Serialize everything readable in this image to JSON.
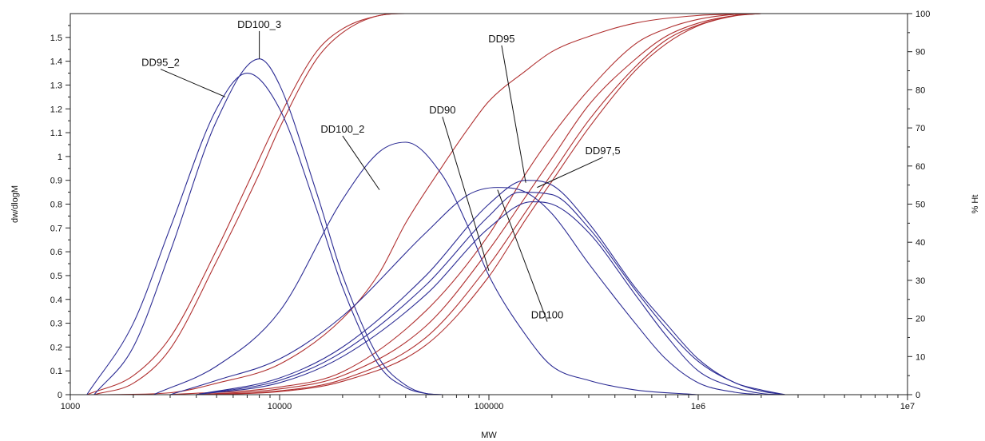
{
  "chart_data": {
    "type": "line",
    "title": "",
    "xlabel": "MW",
    "ylabel": "dw/dlogM",
    "y2label": "% Ht",
    "xscale": "log",
    "xlim": [
      1000,
      10000000
    ],
    "ylim": [
      0,
      1.6
    ],
    "y2lim": [
      0,
      100
    ],
    "grid": false,
    "x_ticks": [
      "1000",
      "10000",
      "100000",
      "1e6",
      "1e7"
    ],
    "y_ticks": [
      "0",
      "0.1",
      "0.2",
      "0.3",
      "0.4",
      "0.5",
      "0.6",
      "0.7",
      "0.8",
      "0.9",
      "1",
      "1.1",
      "1.2",
      "1.3",
      "1.4",
      "1.5"
    ],
    "y2_ticks": [
      "0",
      "10",
      "20",
      "30",
      "40",
      "50",
      "60",
      "70",
      "80",
      "90",
      "100"
    ],
    "colors": {
      "distribution": "#2c2c94",
      "cumulative": "#b03030",
      "axis": "#222222"
    },
    "distribution_series": [
      {
        "name": "DD95_2",
        "x": [
          1200,
          2000,
          3000,
          5000,
          7000,
          10000,
          15000,
          20000,
          30000,
          40000,
          50000,
          60000
        ],
        "y": [
          0.0,
          0.3,
          0.7,
          1.2,
          1.35,
          1.2,
          0.78,
          0.45,
          0.12,
          0.03,
          0.005,
          0.0
        ]
      },
      {
        "name": "DD100_3",
        "x": [
          1300,
          2000,
          3000,
          5000,
          8000,
          10000,
          15000,
          20000,
          30000,
          40000,
          50000,
          60000
        ],
        "y": [
          0.0,
          0.2,
          0.6,
          1.15,
          1.41,
          1.3,
          0.85,
          0.5,
          0.15,
          0.04,
          0.005,
          0.0
        ]
      },
      {
        "name": "DD100_2",
        "x": [
          2500,
          5000,
          10000,
          20000,
          30000,
          40000,
          60000,
          80000,
          100000,
          150000,
          200000,
          300000,
          500000,
          1000000
        ],
        "y": [
          0.0,
          0.12,
          0.35,
          0.82,
          1.02,
          1.06,
          0.92,
          0.7,
          0.5,
          0.25,
          0.12,
          0.06,
          0.02,
          0.0
        ]
      },
      {
        "name": "DD90",
        "x": [
          3000,
          5000,
          10000,
          20000,
          50000,
          80000,
          110000,
          150000,
          200000,
          300000,
          500000,
          700000,
          1000000,
          1500000,
          2000000
        ],
        "y": [
          0.0,
          0.06,
          0.15,
          0.33,
          0.68,
          0.84,
          0.87,
          0.85,
          0.76,
          0.55,
          0.3,
          0.15,
          0.05,
          0.01,
          0.0
        ]
      },
      {
        "name": "DD95",
        "x": [
          4000,
          10000,
          20000,
          50000,
          100000,
          150000,
          200000,
          300000,
          500000,
          700000,
          1000000,
          1500000,
          2000000,
          2600000
        ],
        "y": [
          0.0,
          0.07,
          0.2,
          0.5,
          0.8,
          0.9,
          0.88,
          0.72,
          0.45,
          0.3,
          0.15,
          0.05,
          0.02,
          0.0
        ]
      },
      {
        "name": "DD97,5",
        "x": [
          4000,
          10000,
          20000,
          50000,
          100000,
          140000,
          200000,
          300000,
          500000,
          700000,
          1000000,
          1500000,
          2000000,
          2600000
        ],
        "y": [
          0.0,
          0.06,
          0.18,
          0.46,
          0.75,
          0.85,
          0.84,
          0.7,
          0.44,
          0.28,
          0.14,
          0.05,
          0.015,
          0.0
        ]
      },
      {
        "name": "DD100",
        "x": [
          4000,
          10000,
          20000,
          50000,
          100000,
          160000,
          200000,
          300000,
          500000,
          700000,
          1000000,
          1500000,
          2000000,
          2600000
        ],
        "y": [
          0.0,
          0.05,
          0.16,
          0.42,
          0.7,
          0.81,
          0.8,
          0.68,
          0.42,
          0.25,
          0.1,
          0.03,
          0.005,
          0.0
        ]
      }
    ],
    "cumulative_series": [
      {
        "x": [
          1200,
          2000,
          3000,
          5000,
          7000,
          10000,
          15000,
          20000,
          30000,
          40000,
          50000
        ],
        "y": [
          0,
          5,
          15,
          38,
          55,
          73,
          90,
          96,
          99.5,
          100,
          100
        ]
      },
      {
        "x": [
          1300,
          2000,
          3000,
          5000,
          8000,
          10000,
          15000,
          20000,
          30000,
          40000,
          50000
        ],
        "y": [
          0,
          3,
          12,
          35,
          58,
          70,
          88,
          95,
          99.5,
          100,
          100
        ]
      },
      {
        "x": [
          1500,
          3000,
          5000,
          10000,
          20000,
          30000,
          40000,
          60000,
          80000,
          100000,
          150000,
          200000,
          300000,
          500000,
          1000000,
          2000000
        ],
        "y": [
          0,
          0.5,
          3,
          8,
          20,
          32,
          45,
          60,
          70,
          77,
          85,
          90,
          94,
          97.5,
          99.5,
          100
        ]
      },
      {
        "x": [
          3000,
          10000,
          20000,
          50000,
          100000,
          150000,
          200000,
          300000,
          500000,
          700000,
          1000000,
          1500000,
          2000000
        ],
        "y": [
          0,
          2,
          6,
          22,
          42,
          58,
          68,
          80,
          92,
          96,
          98.5,
          99.8,
          100
        ]
      },
      {
        "x": [
          4000,
          10000,
          20000,
          50000,
          100000,
          150000,
          200000,
          300000,
          500000,
          700000,
          1000000,
          1500000,
          2000000
        ],
        "y": [
          0,
          1.5,
          5,
          18,
          38,
          52,
          62,
          76,
          88,
          94,
          97.5,
          99.5,
          100
        ]
      },
      {
        "x": [
          4000,
          10000,
          20000,
          50000,
          100000,
          150000,
          200000,
          300000,
          500000,
          700000,
          1000000,
          1500000,
          2000000
        ],
        "y": [
          0,
          1,
          4,
          15,
          34,
          48,
          58,
          72,
          86,
          93,
          97,
          99.5,
          100
        ]
      },
      {
        "x": [
          4000,
          10000,
          20000,
          50000,
          100000,
          150000,
          200000,
          300000,
          500000,
          700000,
          1000000,
          1500000,
          2000000
        ],
        "y": [
          0,
          0.8,
          3.5,
          13,
          31,
          46,
          56,
          70,
          85,
          92,
          96.8,
          99.4,
          100
        ]
      }
    ],
    "annotations": [
      {
        "text": "DD100_3",
        "label_x": 8000,
        "label_y": 1.54,
        "point_x": 8000,
        "point_y": 1.41
      },
      {
        "text": "DD95_2",
        "label_x": 2700,
        "label_y": 1.38,
        "point_x": 5500,
        "point_y": 1.25
      },
      {
        "text": "DD95",
        "label_x": 115000,
        "label_y": 1.48,
        "point_x": 150000,
        "point_y": 0.89
      },
      {
        "text": "DD100_2",
        "label_x": 20000,
        "label_y": 1.1,
        "point_x": 30000,
        "point_y": 0.86
      },
      {
        "text": "DD90",
        "label_x": 60000,
        "label_y": 1.18,
        "point_x": 100000,
        "point_y": 0.52
      },
      {
        "text": "DD97,5",
        "label_x": 350000,
        "label_y": 1.01,
        "point_x": 170000,
        "point_y": 0.87
      },
      {
        "text": "DD100",
        "label_x": 190000,
        "label_y": 0.32,
        "point_x": 110000,
        "point_y": 0.86
      }
    ]
  }
}
